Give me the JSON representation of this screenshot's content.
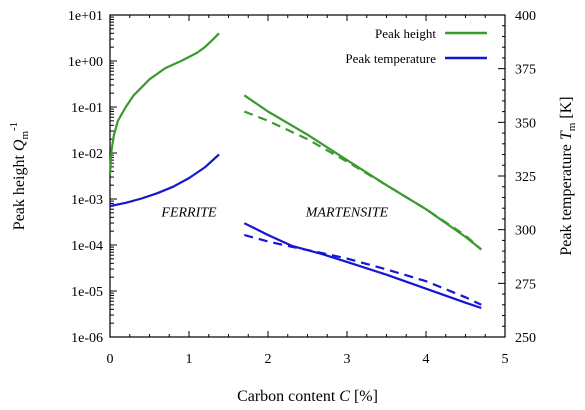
{
  "chart_data": {
    "type": "line",
    "xlabel": "Carbon content C [%]",
    "ylabel_left": "Peak height Q_m^-1",
    "ylabel_right": "Peak temperature T_m [K]",
    "xlim": [
      0,
      5
    ],
    "xticks": [
      0,
      1,
      2,
      3,
      4,
      5
    ],
    "ylim_left": [
      1e-06,
      10
    ],
    "yscale_left": "log",
    "yticks_left": [
      "1e-06",
      "1e-05",
      "1e-04",
      "1e-03",
      "1e-02",
      "1e-01",
      "1e+00",
      "1e+01"
    ],
    "ylim_right": [
      250,
      400
    ],
    "yticks_right": [
      250,
      275,
      300,
      325,
      350,
      375,
      400
    ],
    "grid": false,
    "legend_position": "top-right",
    "legend": [
      {
        "label": "Peak height",
        "color": "#3a9a2e"
      },
      {
        "label": "Peak temperature",
        "color": "#1515d4"
      }
    ],
    "annotations": [
      {
        "text": "FERRITE",
        "x": 1.0,
        "y_right": 300
      },
      {
        "text": "MARTENSITE",
        "x": 3.0,
        "y_right": 300
      }
    ],
    "series": [
      {
        "name": "Peak height",
        "axis": "left",
        "color": "#3a9a2e",
        "style": "solid",
        "x": [
          0.0,
          0.02,
          0.05,
          0.1,
          0.2,
          0.3,
          0.5,
          0.7,
          0.9,
          1.1,
          1.2,
          1.3,
          1.38
        ],
        "y": [
          0.0035,
          0.012,
          0.025,
          0.05,
          0.1,
          0.18,
          0.4,
          0.7,
          1.0,
          1.5,
          2.0,
          2.9,
          4.0
        ]
      },
      {
        "name": "Peak height",
        "axis": "left",
        "color": "#3a9a2e",
        "style": "solid",
        "x": [
          1.7,
          2.0,
          2.5,
          3.0,
          3.5,
          4.0,
          4.5,
          4.7
        ],
        "y": [
          0.18,
          0.08,
          0.025,
          0.007,
          0.002,
          0.0006,
          0.00015,
          8e-05
        ]
      },
      {
        "name": "Peak height",
        "axis": "left",
        "color": "#3a9a2e",
        "style": "dashed",
        "x": [
          1.7,
          2.0,
          2.5,
          3.0,
          3.5,
          4.0,
          4.5,
          4.7
        ],
        "y": [
          0.08,
          0.05,
          0.02,
          0.0065,
          0.002,
          0.0006,
          0.00016,
          8e-05
        ]
      },
      {
        "name": "Peak temperature",
        "axis": "right",
        "color": "#1515d4",
        "style": "solid",
        "x": [
          0.0,
          0.2,
          0.4,
          0.6,
          0.8,
          1.0,
          1.2,
          1.38
        ],
        "y": [
          311,
          312.5,
          314.5,
          317,
          320,
          324,
          329,
          335
        ]
      },
      {
        "name": "Peak temperature",
        "axis": "right",
        "color": "#1515d4",
        "style": "solid",
        "x": [
          1.7,
          2.0,
          2.3,
          2.7,
          3.0,
          3.5,
          4.0,
          4.5,
          4.7
        ],
        "y": [
          303,
          297.5,
          292.5,
          288.5,
          285,
          279,
          272.5,
          266,
          263.5
        ]
      },
      {
        "name": "Peak temperature",
        "axis": "right",
        "color": "#1515d4",
        "style": "dashed",
        "x": [
          1.7,
          2.0,
          2.3,
          2.7,
          3.0,
          3.5,
          4.0,
          4.5,
          4.7
        ],
        "y": [
          297.5,
          294.5,
          292,
          289,
          286.5,
          281.5,
          276,
          268.5,
          265
        ]
      }
    ]
  }
}
